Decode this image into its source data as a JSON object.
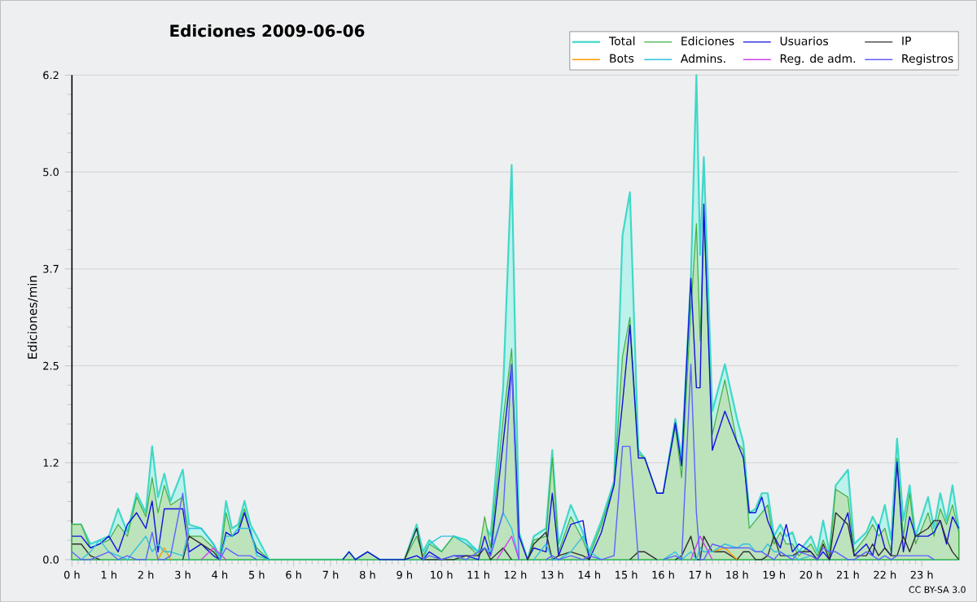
{
  "chart_data": {
    "type": "line",
    "title": "Ediciones  2009-06-06",
    "ylabel": "Ediciones/min",
    "annotations": [
      "CC BY-SA 3.0"
    ],
    "x": [
      0,
      0.25,
      0.5,
      0.75,
      1,
      1.25,
      1.5,
      1.75,
      2,
      2.17,
      2.33,
      2.5,
      2.67,
      3,
      3.17,
      3.5,
      3.83,
      4,
      4.17,
      4.33,
      4.5,
      4.67,
      4.83,
      5,
      5.33,
      6,
      7,
      7.33,
      7.5,
      7.67,
      8,
      8.33,
      8.5,
      9,
      9.33,
      9.5,
      9.67,
      10,
      10.33,
      10.67,
      11,
      11.17,
      11.33,
      11.67,
      11.9,
      12.1,
      12.33,
      12.5,
      12.83,
      13,
      13.17,
      13.5,
      13.83,
      14,
      14.33,
      14.67,
      14.9,
      15.1,
      15.33,
      15.5,
      15.83,
      16,
      16.33,
      16.5,
      16.75,
      16.9,
      17,
      17.1,
      17.33,
      17.67,
      18,
      18.17,
      18.33,
      18.5,
      18.67,
      18.83,
      19,
      19.17,
      19.33,
      19.5,
      19.67,
      20,
      20.17,
      20.33,
      20.5,
      20.67,
      21,
      21.17,
      21.5,
      21.67,
      21.83,
      22,
      22.17,
      22.33,
      22.5,
      22.67,
      22.83,
      23.17,
      23.33,
      23.5,
      23.67,
      23.83,
      24
    ],
    "series": [
      {
        "name": "Total",
        "type": "area",
        "color": "#40d8c8",
        "values": [
          0.45,
          0.45,
          0.2,
          0.25,
          0.3,
          0.65,
          0.35,
          0.85,
          0.6,
          1.45,
          0.8,
          1.1,
          0.75,
          1.15,
          0.45,
          0.4,
          0.2,
          0.05,
          0.75,
          0.4,
          0.45,
          0.75,
          0.45,
          0.3,
          0,
          0,
          0,
          0,
          0.1,
          0,
          0.1,
          0,
          0,
          0,
          0.45,
          0.1,
          0.25,
          0.1,
          0.3,
          0.25,
          0.1,
          0.45,
          0.3,
          2.2,
          5.05,
          0.35,
          0,
          0.3,
          0.4,
          1.4,
          0.2,
          0.7,
          0.35,
          0.1,
          0.5,
          1.0,
          4.15,
          4.7,
          1.4,
          1.3,
          0.85,
          0.85,
          1.8,
          1.3,
          3.6,
          6.2,
          3.9,
          5.15,
          1.9,
          2.5,
          1.8,
          1.5,
          0.6,
          0.65,
          0.85,
          0.85,
          0.3,
          0.45,
          0.3,
          0.35,
          0.1,
          0.3,
          0.1,
          0.5,
          0.1,
          0.95,
          1.15,
          0.2,
          0.35,
          0.55,
          0.4,
          0.7,
          0.25,
          1.55,
          0.5,
          0.95,
          0.3,
          0.8,
          0.4,
          0.85,
          0.5,
          0.95,
          0.4
        ]
      },
      {
        "name": "Ediciones",
        "type": "area",
        "color": "#40b040",
        "values": [
          0.45,
          0.45,
          0.15,
          0.2,
          0.25,
          0.45,
          0.3,
          0.8,
          0.55,
          1.05,
          0.6,
          0.95,
          0.7,
          0.8,
          0.3,
          0.3,
          0.15,
          0,
          0.6,
          0.3,
          0.4,
          0.65,
          0.35,
          0.15,
          0,
          0,
          0,
          0,
          0.1,
          0,
          0.1,
          0,
          0,
          0,
          0.3,
          0.05,
          0.2,
          0.1,
          0.3,
          0.2,
          0.05,
          0.55,
          0.15,
          1.8,
          2.7,
          0.3,
          0,
          0.25,
          0.3,
          1.3,
          0.1,
          0.55,
          0.25,
          0.05,
          0.45,
          0.95,
          2.6,
          3.1,
          1.35,
          1.3,
          0.85,
          0.85,
          1.7,
          1.05,
          3.2,
          4.3,
          2.8,
          4.4,
          1.6,
          2.3,
          1.5,
          1.4,
          0.4,
          0.5,
          0.6,
          0.7,
          0.2,
          0.35,
          0.2,
          0.2,
          0.05,
          0.2,
          0.05,
          0.25,
          0.05,
          0.9,
          0.8,
          0.1,
          0.3,
          0.45,
          0.3,
          0.4,
          0.1,
          1.3,
          0.3,
          0.85,
          0.2,
          0.6,
          0.3,
          0.65,
          0.45,
          0.7,
          0.35
        ]
      },
      {
        "name": "Usuarios",
        "type": "line",
        "color": "#1010e0",
        "values": [
          0.3,
          0.3,
          0.15,
          0.2,
          0.3,
          0.1,
          0.45,
          0.6,
          0.4,
          0.75,
          0.1,
          0.65,
          0.65,
          0.65,
          0.1,
          0.2,
          0.05,
          0,
          0.35,
          0.3,
          0.35,
          0.6,
          0.35,
          0.1,
          0,
          null,
          null,
          0,
          0.1,
          0,
          0.1,
          0,
          0,
          0,
          0.05,
          0,
          0.1,
          0,
          0.05,
          0.05,
          0,
          0.3,
          0.05,
          1.5,
          2.5,
          0.3,
          0,
          0.15,
          0.1,
          0.85,
          0.05,
          0.45,
          0.5,
          0,
          0.35,
          0.95,
          2.0,
          3.0,
          1.3,
          1.3,
          0.85,
          0.85,
          1.75,
          1.2,
          3.6,
          2.2,
          2.2,
          4.55,
          1.4,
          1.9,
          1.5,
          1.3,
          0.6,
          0.6,
          0.8,
          0.5,
          0.3,
          0.15,
          0.45,
          0.1,
          0.2,
          0.1,
          0,
          0.1,
          0,
          0.2,
          0.6,
          0.05,
          0.2,
          0.05,
          0.45,
          0.15,
          0.05,
          1.25,
          0.1,
          0.55,
          0.3,
          0.3,
          0.35,
          0.5,
          0.2,
          0.55,
          0.4
        ]
      },
      {
        "name": "IP",
        "type": "line",
        "color": "#303030",
        "values": [
          0.2,
          0.2,
          0.05,
          0,
          null,
          null,
          null,
          null,
          null,
          null,
          null,
          null,
          null,
          0,
          0.3,
          0.2,
          0.1,
          0,
          null,
          null,
          null,
          null,
          null,
          null,
          null,
          null,
          null,
          null,
          null,
          null,
          null,
          null,
          null,
          0,
          0.4,
          0,
          0,
          0,
          0,
          0.05,
          0.05,
          0.15,
          0,
          0.15,
          0,
          null,
          0,
          0.2,
          0.35,
          0,
          0.05,
          0.1,
          0.05,
          0,
          null,
          null,
          null,
          0,
          0.1,
          0.1,
          0,
          null,
          0,
          0.05,
          0.3,
          0,
          0,
          0.3,
          0.1,
          0.1,
          0,
          0.1,
          0.1,
          0,
          0,
          0.05,
          0.3,
          0.05,
          0.05,
          0.05,
          0.1,
          0.1,
          0,
          0.2,
          0,
          0.6,
          0.45,
          0.05,
          0.05,
          0.2,
          0.05,
          0.15,
          0.05,
          0.05,
          0.3,
          0.1,
          0.3,
          0.4,
          0.5,
          0.5,
          0.25,
          0.1,
          0
        ]
      },
      {
        "name": "Bots",
        "type": "line",
        "color": "#ff9900",
        "x": [
          2.33,
          2.5,
          2.67,
          17,
          17.33,
          17.67,
          18
        ],
        "values": [
          0,
          0.15,
          0,
          null,
          0.1,
          0.15,
          0
        ]
      },
      {
        "name": "Admins.",
        "type": "line",
        "color": "#30c0e0",
        "values": [
          null,
          0,
          0.1,
          0.25,
          0.1,
          0.05,
          0,
          0.15,
          0.3,
          0.1,
          0.2,
          0.1,
          0.1,
          0.05,
          0.4,
          0.4,
          0.2,
          0,
          0.3,
          0.3,
          0.4,
          0.4,
          0.4,
          0.05,
          0,
          null,
          null,
          null,
          null,
          null,
          null,
          null,
          null,
          null,
          null,
          0,
          0.2,
          0.3,
          0.3,
          0.2,
          0.1,
          0.15,
          0.1,
          0.6,
          0.4,
          0,
          null,
          0,
          0.2,
          0,
          0,
          0.1,
          0.3,
          0.1,
          0,
          null,
          null,
          null,
          null,
          null,
          null,
          0,
          0.1,
          0,
          0.1,
          0,
          0.15,
          0.1,
          0.1,
          0.2,
          0.15,
          0.2,
          0.2,
          0.1,
          0.1,
          0.2,
          0.1,
          0.1,
          0.05,
          0.05,
          0,
          0.05,
          null,
          null,
          null,
          null,
          null,
          null,
          null,
          null,
          null,
          null,
          null,
          null,
          null,
          null,
          null,
          null,
          null,
          null,
          null,
          null,
          null
        ]
      },
      {
        "name": "Reg. de adm.",
        "type": "line",
        "color": "#d040f0",
        "x": [
          3.5,
          3.83,
          4.17,
          8,
          11.5,
          11.9,
          12.1,
          14,
          16.75,
          17,
          17.33
        ],
        "values": [
          0,
          0.15,
          0,
          null,
          0,
          0.3,
          0,
          null,
          0,
          0.3,
          0
        ]
      },
      {
        "name": "Registros",
        "type": "line",
        "color": "#6060ff",
        "values": [
          0.1,
          0,
          0,
          0.05,
          0.1,
          0,
          0.05,
          0,
          0,
          0.35,
          0,
          0,
          0.05,
          0.85,
          0,
          null,
          null,
          0,
          0.15,
          0.1,
          0.05,
          0.05,
          0.05,
          0,
          null,
          null,
          null,
          null,
          null,
          null,
          null,
          null,
          null,
          null,
          null,
          0,
          0.05,
          0,
          0.05,
          0,
          0.1,
          0.15,
          0.05,
          0.6,
          2.5,
          0,
          null,
          null,
          0,
          0.05,
          0,
          0.05,
          0,
          0.05,
          0,
          0.05,
          1.45,
          1.45,
          0,
          null,
          null,
          0,
          0.05,
          0,
          2.5,
          0.6,
          0,
          0,
          0.2,
          0.15,
          0.15,
          0.15,
          0.15,
          0.1,
          0.1,
          0.05,
          0,
          0.1,
          0.05,
          0,
          0.1,
          0.05,
          0,
          0.15,
          0.1,
          0.1,
          0,
          0,
          0.1,
          0.05,
          0,
          0.05,
          0,
          0.05,
          0.05,
          0.05,
          0.05,
          0.05,
          0,
          null,
          null,
          null,
          null
        ]
      }
    ],
    "xlim": [
      0,
      24
    ],
    "xticks": [
      {
        "value": 0,
        "label": "0 h"
      },
      {
        "value": 1,
        "label": "1 h"
      },
      {
        "value": 2,
        "label": "2 h"
      },
      {
        "value": 3,
        "label": "3 h"
      },
      {
        "value": 4,
        "label": "4 h"
      },
      {
        "value": 5,
        "label": "5 h"
      },
      {
        "value": 6,
        "label": "6 h"
      },
      {
        "value": 7,
        "label": "7 h"
      },
      {
        "value": 8,
        "label": "8 h"
      },
      {
        "value": 9,
        "label": "9 h"
      },
      {
        "value": 10,
        "label": "10 h"
      },
      {
        "value": 11,
        "label": "11 h"
      },
      {
        "value": 12,
        "label": "12 h"
      },
      {
        "value": 13,
        "label": "13 h"
      },
      {
        "value": 14,
        "label": "14 h"
      },
      {
        "value": 15,
        "label": "15 h"
      },
      {
        "value": 16,
        "label": "16 h"
      },
      {
        "value": 17,
        "label": "17 h"
      },
      {
        "value": 18,
        "label": "18 h"
      },
      {
        "value": 19,
        "label": "19 h"
      },
      {
        "value": 20,
        "label": "20 h"
      },
      {
        "value": 21,
        "label": "21 h"
      },
      {
        "value": 22,
        "label": "22 h"
      },
      {
        "value": 23,
        "label": "23 h"
      }
    ],
    "ylim": [
      0,
      6.2
    ],
    "yticks": [
      {
        "value": 0,
        "label": "0.0"
      },
      {
        "value": 1.24,
        "label": "1.2"
      },
      {
        "value": 2.48,
        "label": "2.5"
      },
      {
        "value": 3.72,
        "label": "3.7"
      },
      {
        "value": 4.96,
        "label": "5.0"
      },
      {
        "value": 6.2,
        "label": "6.2"
      }
    ],
    "grid": "y",
    "legend": "top right"
  }
}
